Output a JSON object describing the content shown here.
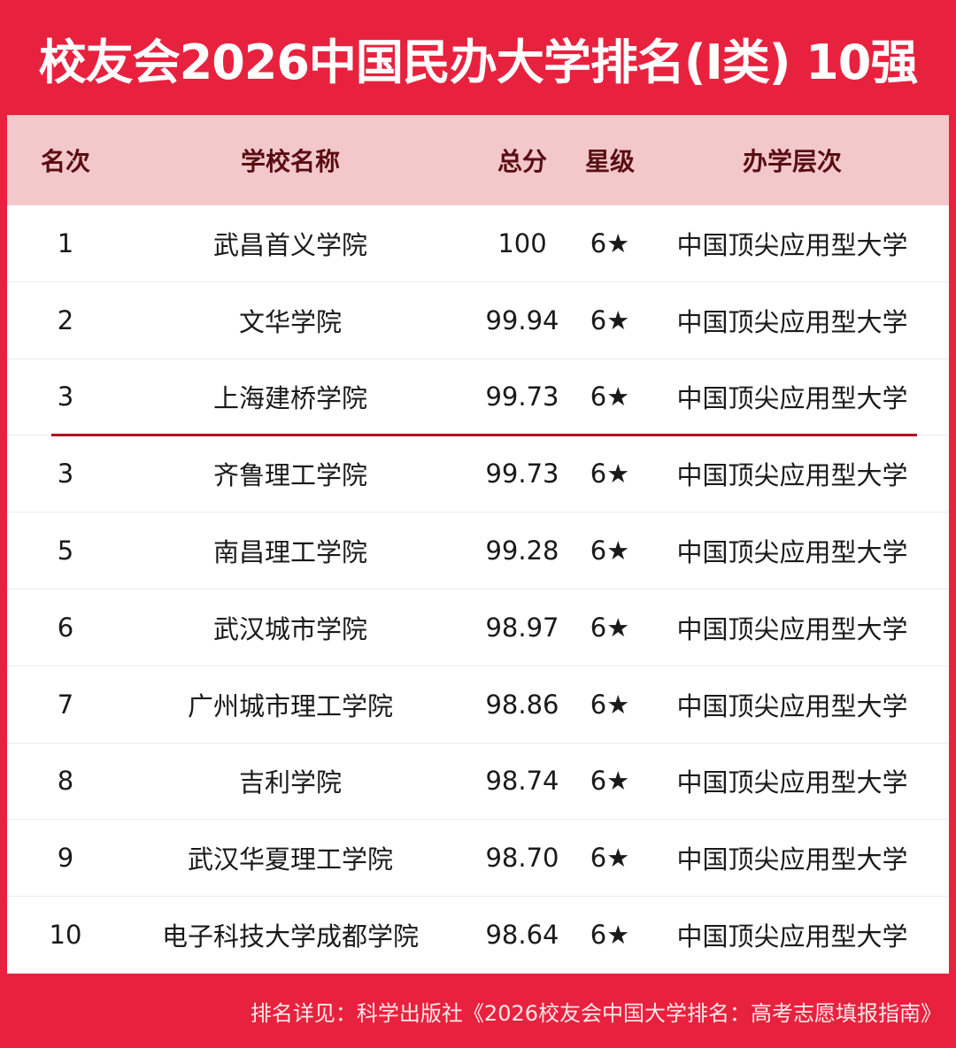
{
  "title": "校友会2026中国民办大学排名(I类) 10强",
  "columns": [
    "名次",
    "学校名称",
    "总分",
    "星级",
    "办学层次"
  ],
  "rows": [
    {
      "rank": "1",
      "name": "武昌首义学院",
      "score": "100",
      "star": "6★",
      "level": "中国顶尖应用型大学"
    },
    {
      "rank": "2",
      "name": "文华学院",
      "score": "99.94",
      "star": "6★",
      "level": "中国顶尖应用型大学"
    },
    {
      "rank": "3",
      "name": "上海建桥学院",
      "score": "99.73",
      "star": "6★",
      "level": "中国顶尖应用型大学"
    },
    {
      "rank": "3",
      "name": "齐鲁理工学院",
      "score": "99.73",
      "star": "6★",
      "level": "中国顶尖应用型大学"
    },
    {
      "rank": "5",
      "name": "南昌理工学院",
      "score": "99.28",
      "star": "6★",
      "level": "中国顶尖应用型大学"
    },
    {
      "rank": "6",
      "name": "武汉城市学院",
      "score": "98.97",
      "star": "6★",
      "level": "中国顶尖应用型大学"
    },
    {
      "rank": "7",
      "name": "广州城市理工学院",
      "score": "98.86",
      "star": "6★",
      "level": "中国顶尖应用型大学"
    },
    {
      "rank": "8",
      "name": "吉利学院",
      "score": "98.74",
      "star": "6★",
      "level": "中国顶尖应用型大学"
    },
    {
      "rank": "9",
      "name": "武汉华夏理工学院",
      "score": "98.70",
      "star": "6★",
      "level": "中国顶尖应用型大学"
    },
    {
      "rank": "10",
      "name": "电子科技大学成都学院",
      "score": "98.64",
      "star": "6★",
      "level": "中国顶尖应用型大学"
    }
  ],
  "footer": "排名详见：科学出版社《2026校友会中国大学排名：高考志愿填报指南》",
  "colors": {
    "brand_red": "#e8223e",
    "header_pink": "#f2c8cb",
    "divider": "#b01020"
  }
}
